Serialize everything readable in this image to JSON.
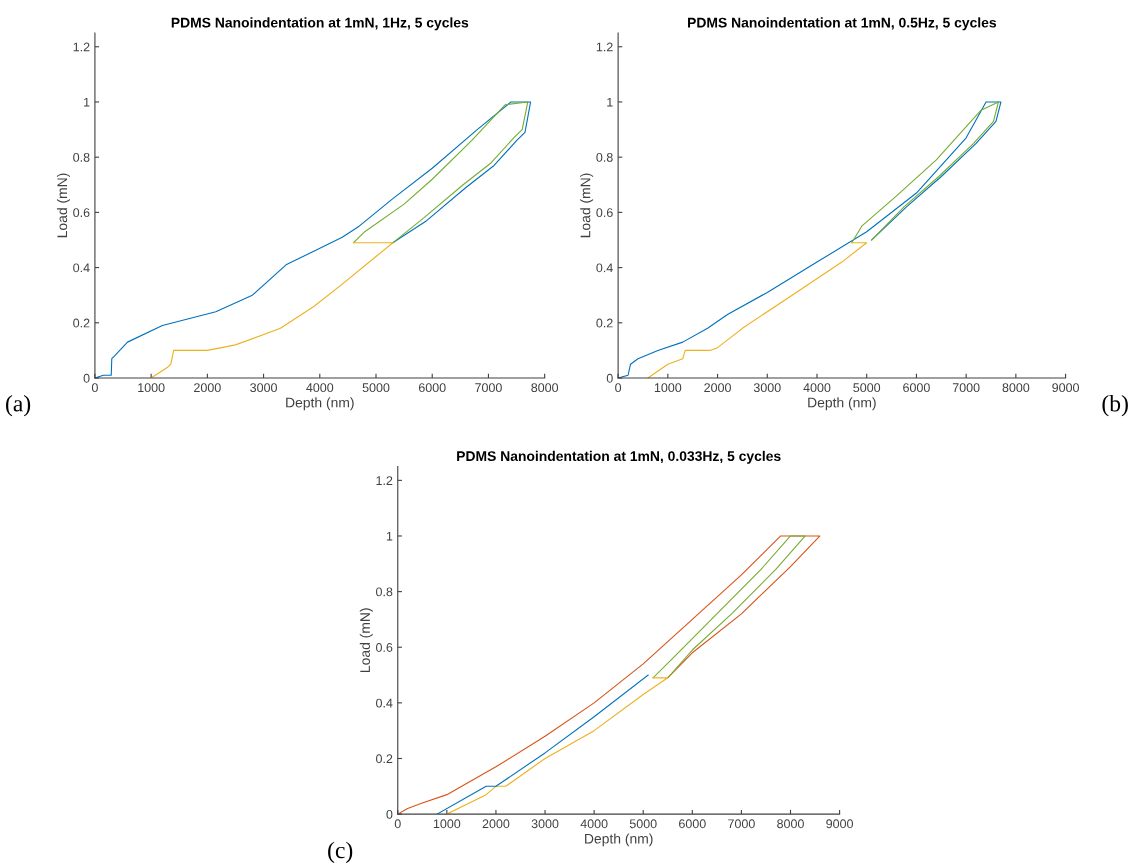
{
  "chart_data": [
    {
      "type": "line",
      "title": "PDMS Nanoindentation at 1mN, 1Hz, 5 cycles",
      "xlabel": "Depth (nm)",
      "ylabel": "Load (mN)",
      "xlim": [
        0,
        8000
      ],
      "xticks": [
        0,
        1000,
        2000,
        3000,
        4000,
        5000,
        6000,
        7000,
        8000
      ],
      "ylim": [
        0,
        1.25
      ],
      "yticks": [
        0,
        0.2,
        0.4,
        0.6,
        0.8,
        1,
        1.2
      ],
      "grid": false,
      "annotations": [
        "(a)"
      ],
      "series": [
        {
          "color": "#0072bd",
          "x": [
            0,
            150,
            290,
            300,
            350,
            580,
            1200,
            2150,
            2800,
            3400,
            4400,
            4700,
            5300,
            6000,
            6800,
            7400,
            7750,
            7650,
            7500,
            7100,
            6600,
            5900,
            5300
          ],
          "values": [
            0,
            0.01,
            0.01,
            0.07,
            0.08,
            0.13,
            0.19,
            0.24,
            0.3,
            0.41,
            0.51,
            0.55,
            0.65,
            0.76,
            0.9,
            1,
            1,
            0.89,
            0.86,
            0.77,
            0.69,
            0.57,
            0.49
          ]
        },
        {
          "color": "#77ac30",
          "x": [
            4600,
            4800,
            5500,
            6000,
            6700,
            7300,
            7700,
            7600,
            7450,
            7050,
            6550,
            5850,
            5300
          ],
          "values": [
            0.49,
            0.53,
            0.63,
            0.72,
            0.86,
            0.99,
            1,
            0.9,
            0.87,
            0.78,
            0.7,
            0.58,
            0.49
          ]
        },
        {
          "color": "#edb120",
          "x": [
            4600,
            5300,
            5000,
            4400,
            3900,
            3300,
            2500,
            2000,
            1400,
            1350,
            1300,
            1000
          ],
          "values": [
            0.49,
            0.49,
            0.44,
            0.34,
            0.26,
            0.18,
            0.12,
            0.1,
            0.1,
            0.05,
            0.04,
            0
          ]
        }
      ]
    },
    {
      "type": "line",
      "title": "PDMS Nanoindentation at 1mN, 0.5Hz, 5 cycles",
      "xlabel": "Depth (nm)",
      "ylabel": "Load (mN)",
      "xlim": [
        0,
        9000
      ],
      "xticks": [
        0,
        1000,
        2000,
        3000,
        4000,
        5000,
        6000,
        7000,
        8000,
        9000
      ],
      "ylim": [
        0,
        1.25
      ],
      "yticks": [
        0,
        0.2,
        0.4,
        0.6,
        0.8,
        1,
        1.2
      ],
      "grid": false,
      "annotations": [
        "(b)"
      ],
      "series": [
        {
          "color": "#0072bd",
          "x": [
            0,
            200,
            250,
            400,
            800,
            1300,
            1800,
            2200,
            3000,
            4000,
            5000,
            6000,
            7000,
            7400,
            7700,
            7600,
            7200,
            6500,
            5800,
            5100
          ],
          "values": [
            0,
            0.01,
            0.05,
            0.07,
            0.1,
            0.13,
            0.18,
            0.23,
            0.31,
            0.42,
            0.53,
            0.67,
            0.87,
            1,
            1,
            0.93,
            0.85,
            0.73,
            0.62,
            0.5
          ]
        },
        {
          "color": "#77ac30",
          "x": [
            4700,
            4900,
            5600,
            6400,
            7300,
            7650,
            7550,
            7150,
            6450,
            5750,
            5100
          ],
          "values": [
            0.49,
            0.55,
            0.66,
            0.79,
            0.97,
            1,
            0.93,
            0.85,
            0.73,
            0.62,
            0.5
          ]
        },
        {
          "color": "#edb120",
          "x": [
            4700,
            5000,
            4500,
            3500,
            2500,
            2000,
            1850,
            1350,
            1300,
            1000,
            600
          ],
          "values": [
            0.49,
            0.49,
            0.42,
            0.3,
            0.18,
            0.11,
            0.1,
            0.1,
            0.07,
            0.05,
            0
          ]
        }
      ]
    },
    {
      "type": "line",
      "title": "PDMS Nanoindentation at 1mN, 0.033Hz, 5 cycles",
      "xlabel": "Depth (nm)",
      "ylabel": "Load (mN)",
      "xlim": [
        0,
        9000
      ],
      "xticks": [
        0,
        1000,
        2000,
        3000,
        4000,
        5000,
        6000,
        7000,
        8000,
        9000
      ],
      "ylim": [
        0,
        1.25
      ],
      "yticks": [
        0,
        0.2,
        0.4,
        0.6,
        0.8,
        1,
        1.2
      ],
      "grid": false,
      "annotations": [
        "(c)"
      ],
      "series": [
        {
          "color": "#d95319",
          "x": [
            0,
            200,
            500,
            1000,
            2000,
            3000,
            4000,
            5000,
            6000,
            7000,
            7800,
            8600,
            8000,
            7000,
            6000,
            5500
          ],
          "values": [
            0,
            0.02,
            0.04,
            0.07,
            0.17,
            0.28,
            0.4,
            0.54,
            0.7,
            0.86,
            1,
            1,
            0.89,
            0.72,
            0.58,
            0.49
          ]
        },
        {
          "color": "#77ac30",
          "x": [
            5200,
            5600,
            6500,
            7400,
            8000,
            8300,
            7700,
            6800,
            6000,
            5500
          ],
          "values": [
            0.49,
            0.56,
            0.72,
            0.88,
            1,
            1,
            0.88,
            0.72,
            0.59,
            0.49
          ]
        },
        {
          "color": "#edb120",
          "x": [
            5200,
            5500,
            5000,
            4000,
            3000,
            2200,
            2000,
            1800,
            1000
          ],
          "values": [
            0.49,
            0.49,
            0.43,
            0.3,
            0.2,
            0.1,
            0.1,
            0.07,
            0
          ]
        },
        {
          "color": "#0072bd",
          "x": [
            5100,
            4000,
            3000,
            2000,
            1800,
            800
          ],
          "values": [
            0.5,
            0.35,
            0.22,
            0.1,
            0.1,
            0
          ]
        }
      ]
    }
  ]
}
